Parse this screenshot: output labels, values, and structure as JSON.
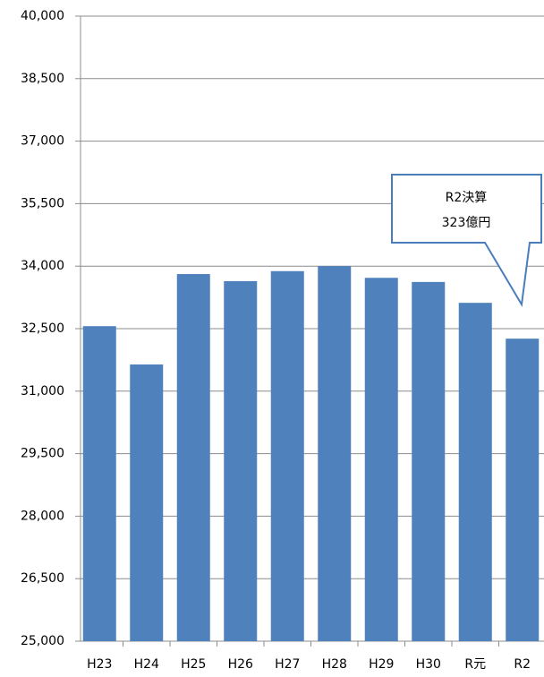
{
  "chart_data": {
    "type": "bar",
    "categories": [
      "H23",
      "H24",
      "H25",
      "H26",
      "H27",
      "H28",
      "H29",
      "H30",
      "R元",
      "R2"
    ],
    "values": [
      32560,
      31640,
      33810,
      33640,
      33880,
      34000,
      33720,
      33620,
      33120,
      32260
    ],
    "color": "#4f81bd",
    "ylim": [
      25000,
      40000
    ],
    "yticks": [
      {
        "value": 25000,
        "label": "25,000"
      },
      {
        "value": 26500,
        "label": "26,500"
      },
      {
        "value": 28000,
        "label": "28,000"
      },
      {
        "value": 29500,
        "label": "29,500"
      },
      {
        "value": 31000,
        "label": "31,000"
      },
      {
        "value": 32500,
        "label": "32,500"
      },
      {
        "value": 34000,
        "label": "34,000"
      },
      {
        "value": 35500,
        "label": "35,500"
      },
      {
        "value": 37000,
        "label": "37,000"
      },
      {
        "value": 38500,
        "label": "38,500"
      },
      {
        "value": 40000,
        "label": "40,000"
      }
    ],
    "grid": true,
    "annotation": [
      "R2決算",
      "323億円"
    ]
  }
}
